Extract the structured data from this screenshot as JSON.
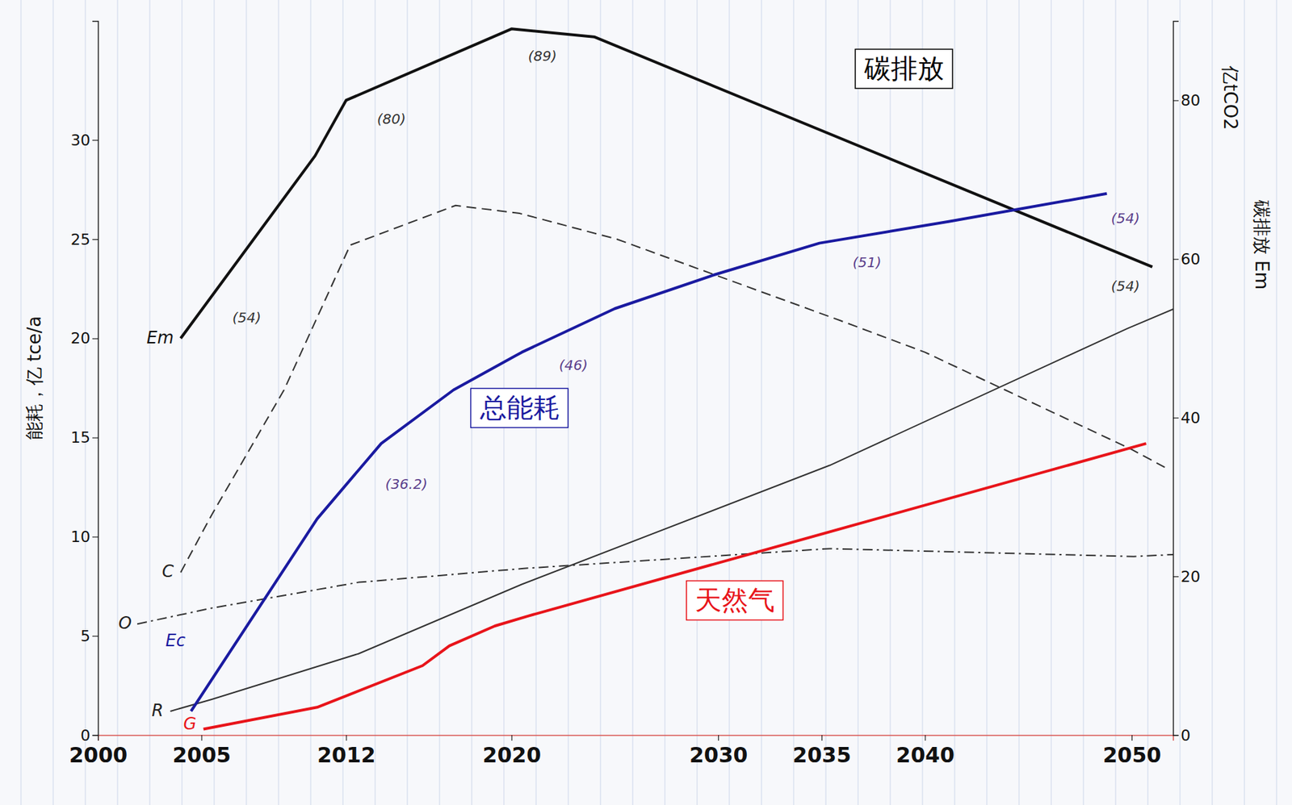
{
  "chart_data": {
    "type": "line",
    "ylabel": "能耗，亿 tce/a",
    "y2label": "亿tCO2",
    "y2note": "碳排放 Em",
    "xlim": [
      2000,
      2052
    ],
    "xticks": [
      2000,
      2005,
      2012,
      2020,
      2030,
      2035,
      2040,
      2050
    ],
    "ylim": [
      0,
      36
    ],
    "yticks": [
      0,
      5,
      10,
      15,
      20,
      25,
      30
    ],
    "y2lim": [
      0,
      90
    ],
    "y2ticks": [
      0,
      20,
      40,
      60,
      80
    ],
    "grid": false,
    "series": [
      {
        "name": "Em",
        "color": "#111111",
        "line_style": "solid",
        "axis": "y2",
        "x": [
          2004,
          2010.5,
          2012,
          2020,
          2024,
          2051
        ],
        "values": [
          50,
          73,
          80,
          89,
          88,
          59
        ]
      },
      {
        "name": "Ec",
        "color": "#1a1aa0",
        "line_style": "solid",
        "x": [
          2004.5,
          2010.6,
          2013.7,
          2017.2,
          2020.5,
          2025,
          2029.8,
          2034.9,
          2041.2,
          2048.8
        ],
        "values": [
          1.2,
          10.9,
          14.7,
          17.4,
          19.3,
          21.5,
          23.2,
          24.8,
          25.9,
          27.3
        ]
      },
      {
        "name": "C",
        "color": "#333333",
        "line_style": "dashed",
        "x": [
          2004,
          2005.5,
          2009,
          2012.2,
          2017.3,
          2020.4,
          2025.1,
          2035.9,
          2040,
          2050,
          2051.6
        ],
        "values": [
          8.2,
          11.1,
          17.4,
          24.7,
          26.7,
          26.3,
          25.0,
          20.9,
          19.3,
          14.4,
          13.5
        ]
      },
      {
        "name": "O",
        "color": "#333333",
        "line_style": "dashdot",
        "x": [
          2001.9,
          2005.5,
          2012.6,
          2020.6,
          2035.4,
          2050.1,
          2052
        ],
        "values": [
          5.6,
          6.4,
          7.7,
          8.4,
          9.4,
          9.0,
          9.1
        ]
      },
      {
        "name": "R",
        "color": "#333333",
        "line_style": "solid",
        "x": [
          2003.5,
          2005.5,
          2012.6,
          2020.5,
          2035.4,
          2049.8,
          2052.3
        ],
        "values": [
          1.2,
          1.8,
          4.1,
          7.6,
          13.6,
          20.5,
          21.6
        ]
      },
      {
        "name": "G",
        "color": "#e8141a",
        "line_style": "solid",
        "x": [
          2005.1,
          2010.6,
          2015.7,
          2017,
          2019.2,
          2020.8,
          2050.7
        ],
        "values": [
          0.3,
          1.4,
          3.5,
          4.5,
          5.5,
          6.0,
          14.7
        ]
      }
    ],
    "boxes": [
      {
        "text": "碳排放",
        "x": 2039,
        "y": 33.5,
        "color": "#000000"
      },
      {
        "text": "总能耗",
        "x": 2020.4,
        "y": 16.4,
        "color": "#1a1aa0"
      },
      {
        "text": "天然气",
        "x": 2030.8,
        "y": 6.7,
        "color": "#e8141a"
      }
    ],
    "annotations": [
      {
        "text": "(54)",
        "x": 2006.5,
        "y": 21.0,
        "color": "#333333"
      },
      {
        "text": "(80)",
        "x": 2013.5,
        "y": 31.0,
        "color": "#333333"
      },
      {
        "text": "(89)",
        "x": 2020.8,
        "y": 34.2,
        "color": "#333333"
      },
      {
        "text": "(36.2)",
        "x": 2013.9,
        "y": 12.6,
        "color": "#5a3d8a"
      },
      {
        "text": "(46)",
        "x": 2022.3,
        "y": 18.6,
        "color": "#5a3d8a"
      },
      {
        "text": "(51)",
        "x": 2036.5,
        "y": 23.8,
        "color": "#5a3d8a"
      },
      {
        "text": "(54)",
        "x": 2049,
        "y": 26.0,
        "color": "#5a3d8a"
      },
      {
        "text": "(54)",
        "x": 2049,
        "y": 22.6,
        "color": "#333333"
      }
    ]
  }
}
